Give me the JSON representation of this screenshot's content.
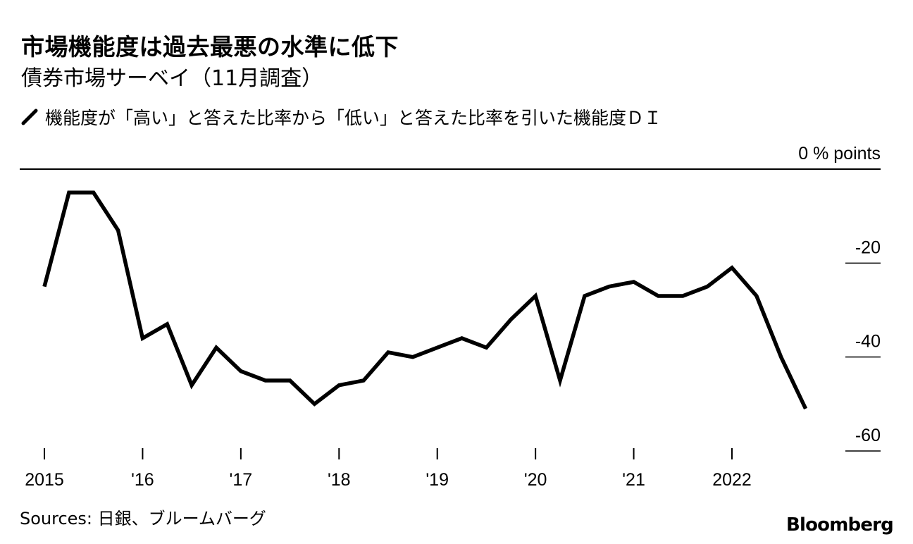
{
  "title": "市場機能度は過去最悪の水準に低下",
  "subtitle": "債券市場サーベイ（11月調査）",
  "legend": {
    "label": "機能度が「高い」と答えた比率から「低い」と答えた比率を引いた機能度ＤＩ",
    "icon": "line-icon"
  },
  "source": "Sources: 日銀、ブルームバーグ",
  "logo": "Bloomberg",
  "chart_data": {
    "type": "line",
    "ylabel": "% points",
    "ylim": [
      -63,
      5
    ],
    "y_ticks": [
      {
        "value": 0,
        "label": "0 % points"
      },
      {
        "value": -20,
        "label": "-20"
      },
      {
        "value": -40,
        "label": "-40"
      },
      {
        "value": -60,
        "label": "-60"
      }
    ],
    "x_ticks": [
      {
        "value": 2015.0,
        "label": "2015"
      },
      {
        "value": 2016.0,
        "label": "'16"
      },
      {
        "value": 2017.0,
        "label": "'17"
      },
      {
        "value": 2018.0,
        "label": "'18"
      },
      {
        "value": 2019.0,
        "label": "'19"
      },
      {
        "value": 2020.0,
        "label": "'20"
      },
      {
        "value": 2021.0,
        "label": "'21"
      },
      {
        "value": 2022.0,
        "label": "2022"
      }
    ],
    "xlim": [
      2014.75,
      2023.25
    ],
    "color": "#000000",
    "series": [
      {
        "x": [
          2015.0,
          2015.25,
          2015.5,
          2015.75,
          2016.0,
          2016.25,
          2016.5,
          2016.75,
          2017.0,
          2017.25,
          2017.5,
          2017.75,
          2018.0,
          2018.25,
          2018.5,
          2018.75,
          2019.0,
          2019.25,
          2019.5,
          2019.75,
          2020.0,
          2020.25,
          2020.5,
          2020.75,
          2021.0,
          2021.25,
          2021.5,
          2021.75,
          2022.0,
          2022.25,
          2022.5,
          2022.75
        ],
        "values": [
          -25,
          -5,
          -5,
          -13,
          -36,
          -33,
          -46,
          -38,
          -43,
          -45,
          -45,
          -50,
          -46,
          -45,
          -39,
          -40,
          -38,
          -36,
          -38,
          -32,
          -27,
          -45,
          -27,
          -25,
          -24,
          -27,
          -27,
          -25,
          -21,
          -27,
          -40,
          -51
        ]
      }
    ]
  }
}
